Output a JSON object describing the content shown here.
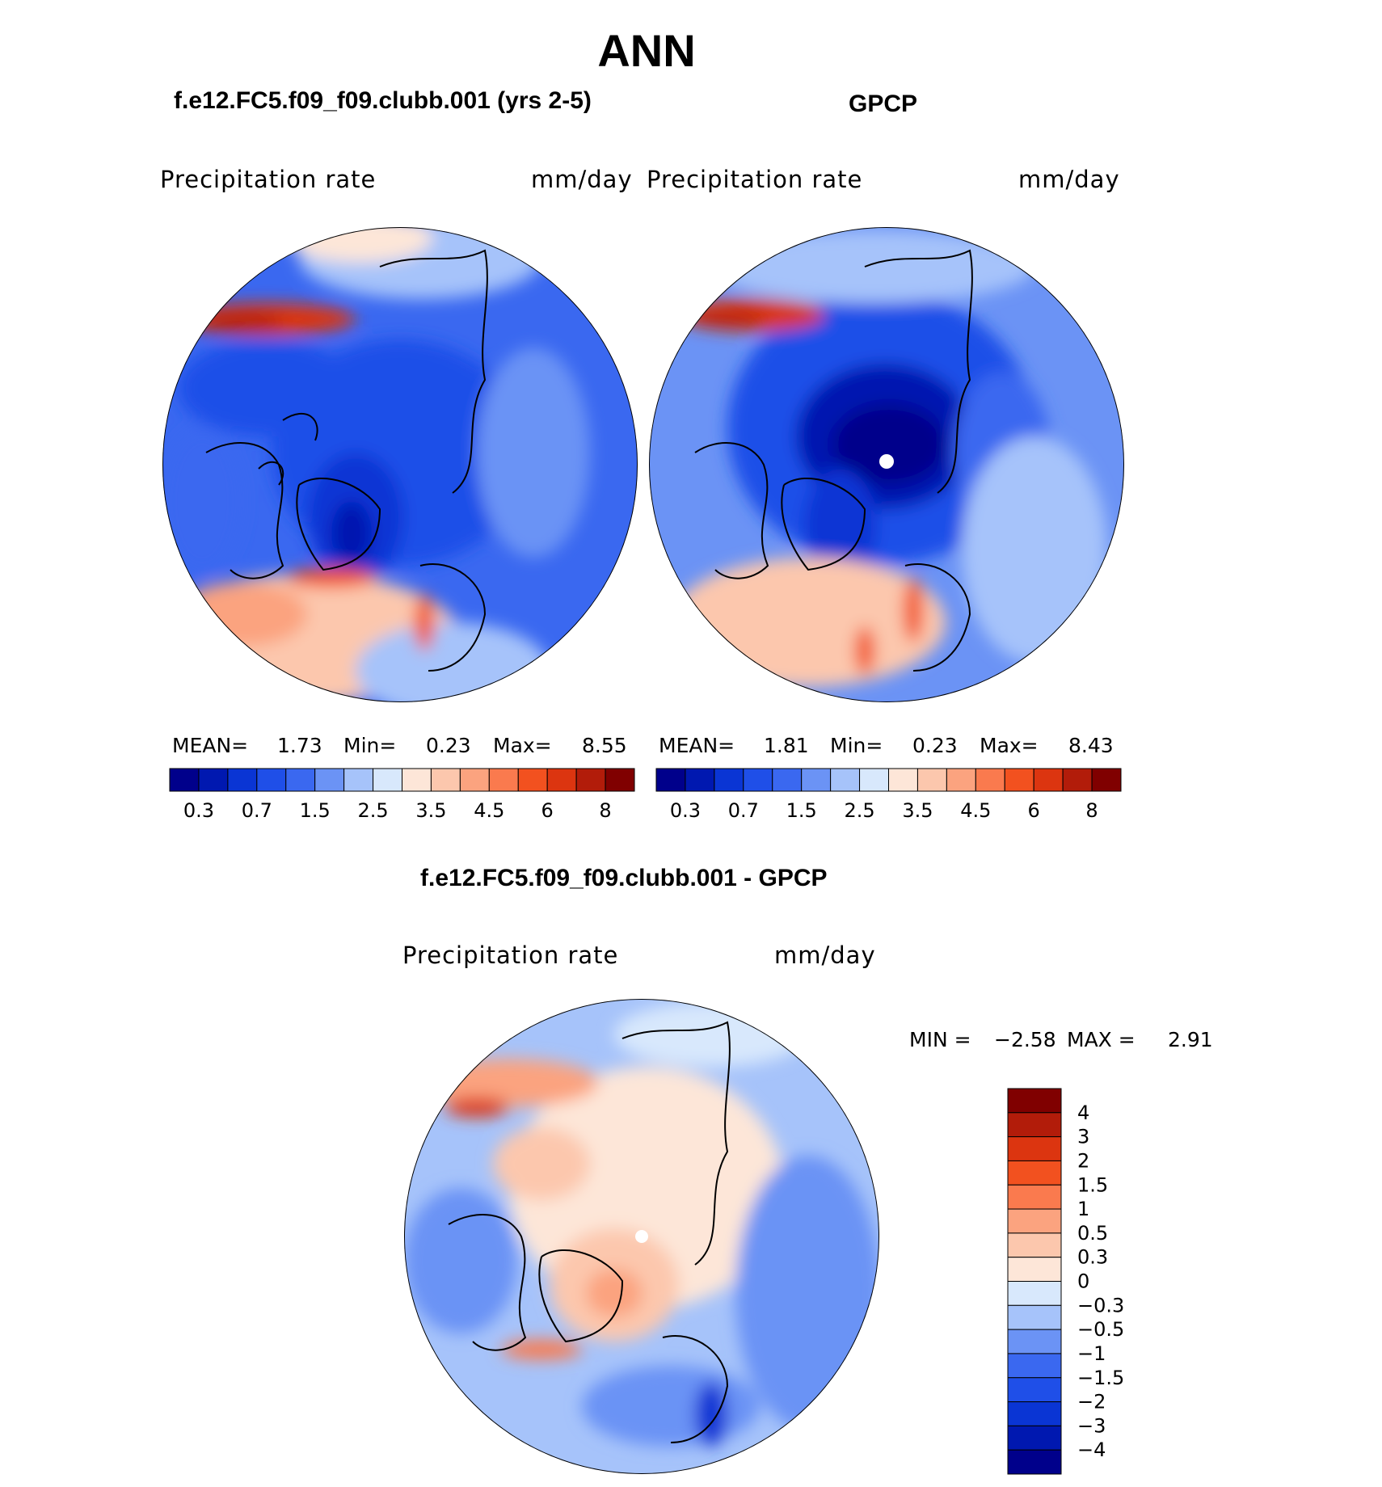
{
  "main_title": "ANN",
  "panels": [
    {
      "title": "f.e12.FC5.f09_f09.clubb.001 (yrs 2-5)",
      "variable": "Precipitation  rate",
      "units": "mm/day",
      "stats": {
        "mean_label": "MEAN=",
        "mean": "1.73",
        "min_label": "Min=",
        "min": "0.23",
        "max_label": "Max=",
        "max": "8.55"
      }
    },
    {
      "title": "GPCP",
      "variable": "Precipitation  rate",
      "units": "mm/day",
      "stats": {
        "mean_label": "MEAN=",
        "mean": "1.81",
        "min_label": "Min=",
        "min": "0.23",
        "max_label": "Max=",
        "max": "8.43"
      }
    },
    {
      "title": "f.e12.FC5.f09_f09.clubb.001 - GPCP",
      "variable": "Precipitation  rate",
      "units": "mm/day",
      "stats": {
        "min_label": "MIN =",
        "min": "−2.58",
        "max_label": "MAX =",
        "max": "2.91"
      }
    }
  ],
  "colorbar_abs": {
    "colors": [
      "#00008b",
      "#0018b0",
      "#0a35d4",
      "#1f4fe8",
      "#3a68f0",
      "#6b93f5",
      "#a6c3fa",
      "#d8e8fc",
      "#fde6d8",
      "#fcc7ad",
      "#fba37f",
      "#fa7a4e",
      "#f2511f",
      "#dc3510",
      "#b21c0a",
      "#800000"
    ],
    "labels": [
      "0.3",
      "0.7",
      "1.5",
      "2.5",
      "3.5",
      "4.5",
      "6",
      "8"
    ]
  },
  "colorbar_diff": {
    "colors": [
      "#800000",
      "#b21c0a",
      "#dc3510",
      "#f2511f",
      "#fa7a4e",
      "#fba37f",
      "#fcc7ad",
      "#fde6d8",
      "#d8e8fc",
      "#a6c3fa",
      "#6b93f5",
      "#3a68f0",
      "#1f4fe8",
      "#0a35d4",
      "#0018b0",
      "#00008b"
    ],
    "labels": [
      "4",
      "3",
      "2",
      "1.5",
      "1",
      "0.5",
      "0.3",
      "0",
      "−0.3",
      "−0.5",
      "−1",
      "−1.5",
      "−2",
      "−3",
      "−4"
    ]
  }
}
